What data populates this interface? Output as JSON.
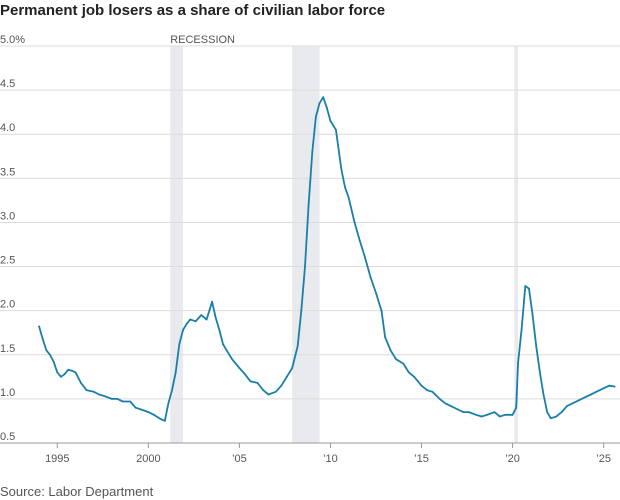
{
  "chart_data": {
    "type": "line",
    "title": "Permanent job losers as a share of civilian labor force",
    "source": "Source: Labor Department",
    "recession_label": "RECESSION",
    "ylim": [
      0.5,
      5.0
    ],
    "xlim": [
      1993.5,
      2025.9
    ],
    "y_ticks": [
      {
        "value": 5.0,
        "label": "5.0%"
      },
      {
        "value": 4.5,
        "label": "4.5"
      },
      {
        "value": 4.0,
        "label": "4.0"
      },
      {
        "value": 3.5,
        "label": "3.5"
      },
      {
        "value": 3.0,
        "label": "3.0"
      },
      {
        "value": 2.5,
        "label": "2.5"
      },
      {
        "value": 2.0,
        "label": "2.0"
      },
      {
        "value": 1.5,
        "label": "1.5"
      },
      {
        "value": 1.0,
        "label": "1.0"
      },
      {
        "value": 0.5,
        "label": "0.5"
      }
    ],
    "x_ticks": [
      {
        "value": 1995,
        "label": "1995"
      },
      {
        "value": 2000,
        "label": "2000"
      },
      {
        "value": 2005,
        "label": "’05"
      },
      {
        "value": 2010,
        "label": "’10"
      },
      {
        "value": 2015,
        "label": "’15"
      },
      {
        "value": 2020,
        "label": "’20"
      },
      {
        "value": 2025,
        "label": "’25"
      }
    ],
    "recessions": [
      [
        2001.2,
        2001.9
      ],
      [
        2007.9,
        2009.4
      ],
      [
        2020.1,
        2020.3
      ]
    ],
    "grid": true,
    "line_color": "#1a7fa8",
    "series": [
      {
        "x": [
          1994.0,
          1994.2,
          1994.4,
          1994.6,
          1994.8,
          1995.0,
          1995.2,
          1995.4,
          1995.6,
          1995.8,
          1996.0,
          1996.3,
          1996.6,
          1997.0,
          1997.3,
          1997.6,
          1998.0,
          1998.3,
          1998.6,
          1999.0,
          1999.3,
          1999.6,
          2000.0,
          2000.3,
          2000.6,
          2000.9,
          2001.1,
          2001.3,
          2001.5,
          2001.7,
          2001.9,
          2002.1,
          2002.3,
          2002.6,
          2002.9,
          2003.2,
          2003.5,
          2003.7,
          2003.9,
          2004.1,
          2004.3,
          2004.6,
          2005.0,
          2005.3,
          2005.6,
          2006.0,
          2006.3,
          2006.6,
          2007.0,
          2007.3,
          2007.6,
          2007.9,
          2008.2,
          2008.4,
          2008.6,
          2008.8,
          2009.0,
          2009.2,
          2009.4,
          2009.6,
          2009.8,
          2010.0,
          2010.3,
          2010.6,
          2010.8,
          2011.0,
          2011.3,
          2011.6,
          2011.9,
          2012.2,
          2012.5,
          2012.8,
          2013.0,
          2013.3,
          2013.6,
          2014.0,
          2014.3,
          2014.6,
          2015.0,
          2015.3,
          2015.6,
          2016.0,
          2016.3,
          2016.6,
          2017.0,
          2017.3,
          2017.6,
          2018.0,
          2018.3,
          2018.6,
          2019.0,
          2019.3,
          2019.6,
          2020.0,
          2020.2,
          2020.3,
          2020.5,
          2020.7,
          2020.9,
          2021.1,
          2021.3,
          2021.5,
          2021.7,
          2021.9,
          2022.1,
          2022.4,
          2022.7,
          2023.0,
          2023.3,
          2023.6,
          2024.0,
          2024.3,
          2024.6,
          2025.0,
          2025.3,
          2025.6
        ],
        "values": [
          1.82,
          1.68,
          1.55,
          1.5,
          1.42,
          1.3,
          1.25,
          1.28,
          1.33,
          1.32,
          1.3,
          1.18,
          1.1,
          1.08,
          1.05,
          1.03,
          1.0,
          1.0,
          0.97,
          0.97,
          0.9,
          0.88,
          0.85,
          0.82,
          0.78,
          0.75,
          0.95,
          1.1,
          1.3,
          1.62,
          1.78,
          1.85,
          1.9,
          1.88,
          1.95,
          1.9,
          2.1,
          1.92,
          1.78,
          1.62,
          1.55,
          1.45,
          1.35,
          1.28,
          1.2,
          1.18,
          1.1,
          1.05,
          1.08,
          1.15,
          1.25,
          1.35,
          1.6,
          2.0,
          2.5,
          3.2,
          3.8,
          4.2,
          4.35,
          4.42,
          4.3,
          4.15,
          4.05,
          3.6,
          3.4,
          3.28,
          3.02,
          2.8,
          2.6,
          2.38,
          2.2,
          2.0,
          1.7,
          1.55,
          1.45,
          1.4,
          1.3,
          1.25,
          1.15,
          1.1,
          1.08,
          1.0,
          0.95,
          0.92,
          0.88,
          0.85,
          0.85,
          0.82,
          0.8,
          0.82,
          0.85,
          0.8,
          0.82,
          0.82,
          0.9,
          1.4,
          1.8,
          2.28,
          2.25,
          1.95,
          1.6,
          1.3,
          1.05,
          0.85,
          0.78,
          0.8,
          0.85,
          0.92,
          0.95,
          0.98,
          1.02,
          1.05,
          1.08,
          1.12,
          1.15,
          1.14
        ]
      }
    ]
  }
}
